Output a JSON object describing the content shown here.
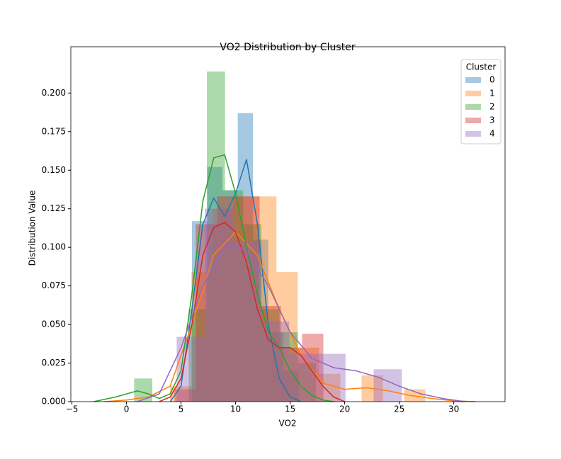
{
  "chart_data": {
    "type": "histogram",
    "title": "VO2 Distribution by Cluster",
    "x_label": "VO2",
    "y_label": "Distribution Value",
    "xlim": [
      -5.1,
      34.7
    ],
    "ylim": [
      0,
      0.23
    ],
    "xticks": [
      {
        "value": -5,
        "label": "−5"
      },
      0,
      5,
      10,
      15,
      20,
      25,
      30
    ],
    "yticks": [
      {
        "value": 0,
        "label": "0.000"
      },
      {
        "value": 0.025,
        "label": "0.025"
      },
      {
        "value": 0.05,
        "label": "0.050"
      },
      {
        "value": 0.075,
        "label": "0.075"
      },
      {
        "value": 0.1,
        "label": "0.100"
      },
      {
        "value": 0.125,
        "label": "0.125"
      },
      {
        "value": 0.15,
        "label": "0.150"
      },
      {
        "value": 0.175,
        "label": "0.175"
      },
      {
        "value": 0.2,
        "label": "0.200"
      }
    ],
    "legend_title": "Cluster",
    "legend_position": "upper right",
    "bar_opacity": 0.4,
    "series": [
      {
        "name": "0",
        "color": "#1f77b4",
        "bins": [
          6.0,
          7.4,
          8.8,
          10.2,
          11.6,
          13.0,
          14.4,
          15.8
        ],
        "values": [
          0.117,
          0.152,
          0.137,
          0.187,
          0.105,
          0.045,
          0.02
        ],
        "kde_x": [
          4,
          5,
          6,
          7,
          8,
          9,
          10,
          11,
          12,
          13,
          14,
          15,
          16
        ],
        "kde_values": [
          0,
          0.01,
          0.06,
          0.115,
          0.132,
          0.12,
          0.135,
          0.157,
          0.115,
          0.05,
          0.015,
          0.003,
          0
        ]
      },
      {
        "name": "1",
        "color": "#ff7f0e",
        "bins": [
          4.0,
          5.95,
          7.9,
          9.85,
          11.8,
          13.75,
          15.7,
          17.65,
          19.6,
          21.55,
          23.5,
          25.45,
          27.4
        ],
        "values": [
          0.01,
          0.084,
          0.125,
          0.133,
          0.133,
          0.084,
          0.035,
          0.018,
          0,
          0.017,
          0,
          0.008
        ],
        "kde_x": [
          -2,
          0,
          2,
          4,
          6,
          8,
          10,
          12,
          14,
          16,
          18,
          20,
          22,
          24,
          26,
          28,
          30,
          32
        ],
        "kde_values": [
          0,
          0.001,
          0.003,
          0.01,
          0.05,
          0.095,
          0.11,
          0.095,
          0.06,
          0.03,
          0.012,
          0.008,
          0.009,
          0.007,
          0.004,
          0.002,
          0.0005,
          0
        ]
      },
      {
        "name": "2",
        "color": "#2ca02c",
        "bins": [
          0.7,
          2.37,
          4.03,
          5.7,
          7.37,
          9.03,
          10.7,
          12.37,
          14.03,
          15.7,
          17.37
        ],
        "values": [
          0.015,
          0,
          0,
          0.06,
          0.214,
          0.137,
          0.115,
          0.06,
          0.045,
          0.025
        ],
        "kde_x": [
          -3,
          -1,
          1,
          2,
          3,
          4,
          5,
          6,
          7,
          8,
          9,
          10,
          11,
          12,
          13,
          14,
          15,
          16,
          17,
          18,
          19
        ],
        "kde_values": [
          0,
          0.003,
          0.007,
          0.005,
          0.002,
          0.005,
          0.02,
          0.07,
          0.13,
          0.158,
          0.16,
          0.135,
          0.1,
          0.07,
          0.045,
          0.035,
          0.02,
          0.01,
          0.004,
          0.001,
          0
        ]
      },
      {
        "name": "3",
        "color": "#d62728",
        "bins": [
          4.4,
          6.35,
          8.3,
          10.25,
          12.2,
          14.15,
          16.1,
          18.05
        ],
        "values": [
          0.008,
          0.115,
          0.133,
          0.133,
          0.062,
          0.035,
          0.044
        ],
        "kde_x": [
          3,
          4,
          5,
          6,
          7,
          8,
          9,
          10,
          11,
          12,
          13,
          14,
          15,
          16,
          17,
          18,
          19,
          20
        ],
        "kde_values": [
          0,
          0.003,
          0.015,
          0.05,
          0.095,
          0.113,
          0.116,
          0.11,
          0.09,
          0.06,
          0.04,
          0.035,
          0.035,
          0.03,
          0.02,
          0.01,
          0.003,
          0
        ]
      },
      {
        "name": "4",
        "color": "#9467bd",
        "bins": [
          4.6,
          7.18,
          9.76,
          12.34,
          14.92,
          17.5,
          20.08,
          22.66,
          25.24
        ],
        "values": [
          0.042,
          0.125,
          0.104,
          0.052,
          0.031,
          0.031,
          0,
          0.021
        ],
        "kde_x": [
          1,
          3,
          5,
          7,
          9,
          10,
          11,
          13,
          15,
          17,
          19,
          21,
          23,
          25,
          27,
          29,
          31
        ],
        "kde_values": [
          0,
          0.005,
          0.035,
          0.075,
          0.1,
          0.101,
          0.098,
          0.075,
          0.045,
          0.028,
          0.022,
          0.02,
          0.016,
          0.01,
          0.005,
          0.002,
          0
        ]
      }
    ]
  }
}
